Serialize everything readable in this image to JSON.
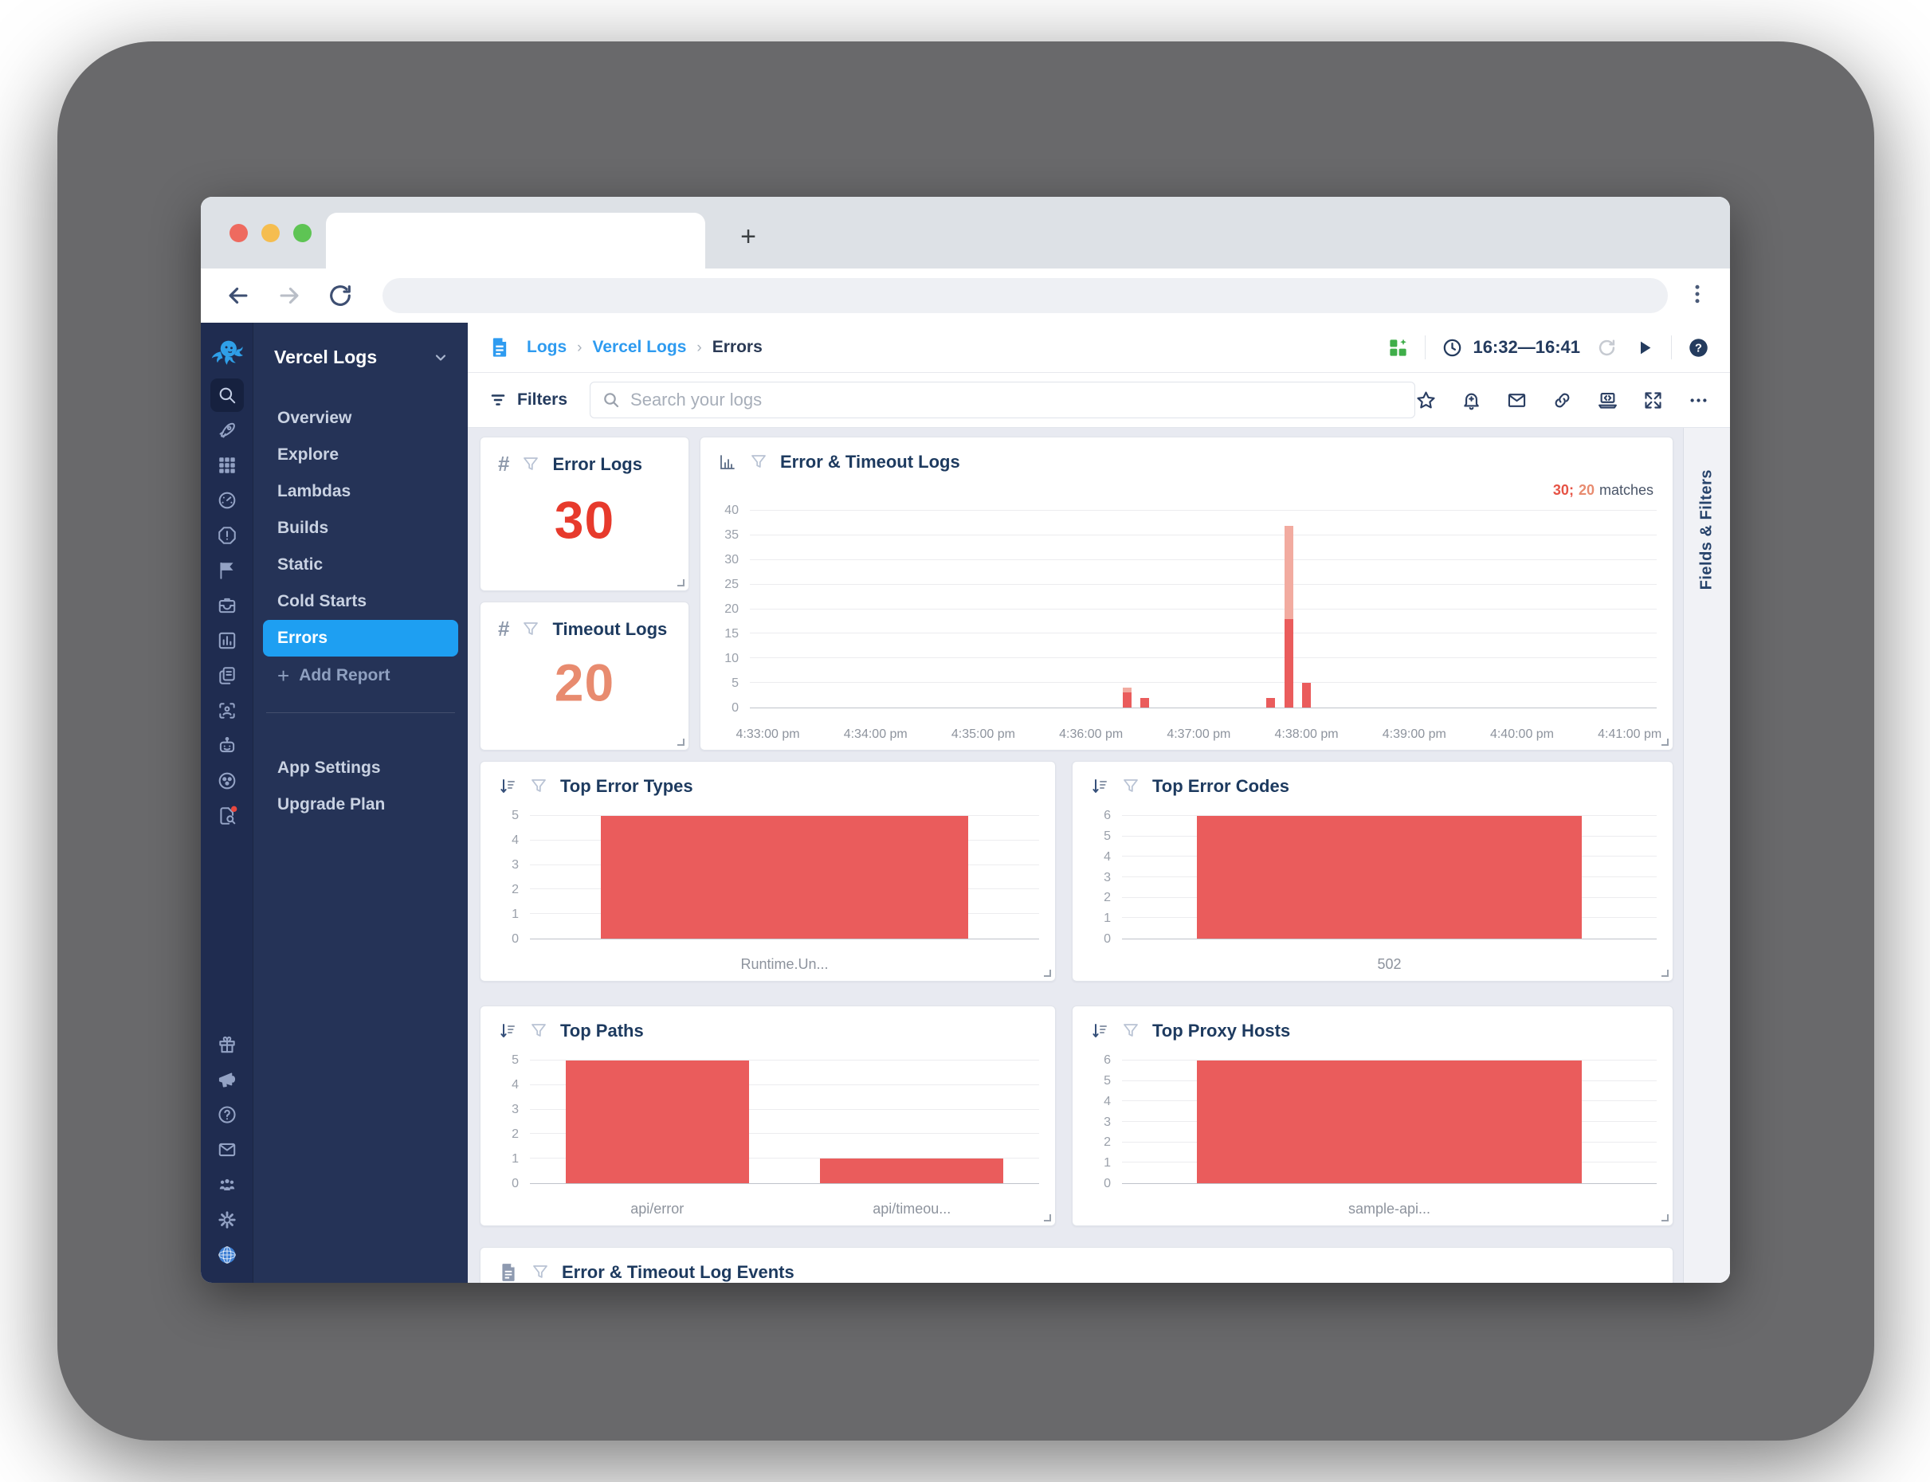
{
  "browser": {
    "traffic_lights": [
      "close",
      "minimize",
      "maximize"
    ],
    "new_tab_label": "+",
    "url_value": "",
    "url_placeholder": ""
  },
  "sidebar": {
    "app_title": "Vercel Logs",
    "rail_icons_top": [
      "dashbird-logo",
      "search",
      "rocket",
      "grid",
      "speedometer",
      "alert",
      "flag",
      "inbox",
      "bar-chart",
      "documents",
      "face-scan",
      "robot",
      "cluster",
      "log-search"
    ],
    "rail_icons_bottom": [
      "gift",
      "megaphone",
      "help",
      "mail",
      "users",
      "gear",
      "globe"
    ],
    "nav_items": [
      "Overview",
      "Explore",
      "Lambdas",
      "Builds",
      "Static",
      "Cold Starts",
      "Errors"
    ],
    "active_item": "Errors",
    "add_report_plus": "+",
    "add_report_label": "Add Report",
    "footer_items": [
      "App Settings",
      "Upgrade Plan"
    ],
    "active_color": "#1e9ff2",
    "rail_notification_color": "#e8483f"
  },
  "header": {
    "breadcrumb": [
      {
        "label": "Logs",
        "link": true
      },
      {
        "label": "Vercel Logs",
        "link": true
      },
      {
        "label": "Errors",
        "link": false
      }
    ],
    "time_range": "16:32—16:41",
    "right_icons": [
      "dashboard-grid",
      "clock",
      "refresh",
      "play",
      "help-filled"
    ],
    "grid_icon_color": "#3fae49"
  },
  "toolbar": {
    "filters_label": "Filters",
    "search_placeholder": "Search your logs",
    "action_icons": [
      "star",
      "bell",
      "envelope",
      "link",
      "laptop-code",
      "expand",
      "ellipsis"
    ]
  },
  "stat_cards": [
    {
      "title": "Error Logs",
      "value": "30",
      "value_color": "#e73a2c"
    },
    {
      "title": "Timeout Logs",
      "value": "20",
      "value_color": "#e88b6f"
    }
  ],
  "fields_panel": {
    "label": "Fields & Filters"
  },
  "events_card": {
    "title": "Error & Timeout Log Events"
  },
  "chart_data": [
    {
      "key": "timeline",
      "type": "bar",
      "title": "Error & Timeout Logs",
      "matches": {
        "error_count": "30;",
        "timeout_count": "20",
        "suffix": "matches"
      },
      "ylim": [
        0,
        40
      ],
      "y_ticks": [
        0,
        5,
        10,
        15,
        20,
        25,
        30,
        35,
        40
      ],
      "x_axis": {
        "start": "4:32:50 pm",
        "end": "4:41:15 pm",
        "ticks": [
          "4:33:00 pm",
          "4:34:00 pm",
          "4:35:00 pm",
          "4:36:00 pm",
          "4:37:00 pm",
          "4:38:00 pm",
          "4:39:00 pm",
          "4:40:00 pm",
          "4:41:00 pm"
        ]
      },
      "series": [
        {
          "name": "Error Logs",
          "color": "#ea5c5c"
        },
        {
          "name": "Timeout Logs",
          "color": "#f2aba0"
        }
      ],
      "points": [
        {
          "time": "4:36:20 pm",
          "error": 3,
          "timeout": 1
        },
        {
          "time": "4:36:30 pm",
          "error": 2,
          "timeout": 0
        },
        {
          "time": "4:37:40 pm",
          "error": 2,
          "timeout": 0
        },
        {
          "time": "4:37:50 pm",
          "error": 18,
          "timeout": 19
        },
        {
          "time": "4:38:00 pm",
          "error": 5,
          "timeout": 0
        }
      ],
      "legend_position": "top-right",
      "grid": true
    },
    {
      "key": "top_error_types",
      "type": "bar",
      "title": "Top Error Types",
      "categories": [
        "Runtime.Un..."
      ],
      "values": [
        5
      ],
      "ylim": [
        0,
        5
      ],
      "y_ticks": [
        0,
        1,
        2,
        3,
        4,
        5
      ],
      "bar_color": "#ea5c5c",
      "grid": true
    },
    {
      "key": "top_error_codes",
      "type": "bar",
      "title": "Top Error Codes",
      "categories": [
        "502"
      ],
      "values": [
        6
      ],
      "ylim": [
        0,
        6
      ],
      "y_ticks": [
        0,
        1,
        2,
        3,
        4,
        5,
        6
      ],
      "bar_color": "#ea5c5c",
      "grid": true
    },
    {
      "key": "top_paths",
      "type": "bar",
      "title": "Top Paths",
      "categories": [
        "api/error",
        "api/timeou..."
      ],
      "values": [
        5,
        1
      ],
      "ylim": [
        0,
        5
      ],
      "y_ticks": [
        0,
        1,
        2,
        3,
        4,
        5
      ],
      "bar_color": "#ea5c5c",
      "grid": true
    },
    {
      "key": "top_proxy_hosts",
      "type": "bar",
      "title": "Top Proxy Hosts",
      "categories": [
        "sample-api..."
      ],
      "values": [
        6
      ],
      "ylim": [
        0,
        6
      ],
      "y_ticks": [
        0,
        1,
        2,
        3,
        4,
        5,
        6
      ],
      "bar_color": "#ea5c5c",
      "grid": true
    }
  ]
}
